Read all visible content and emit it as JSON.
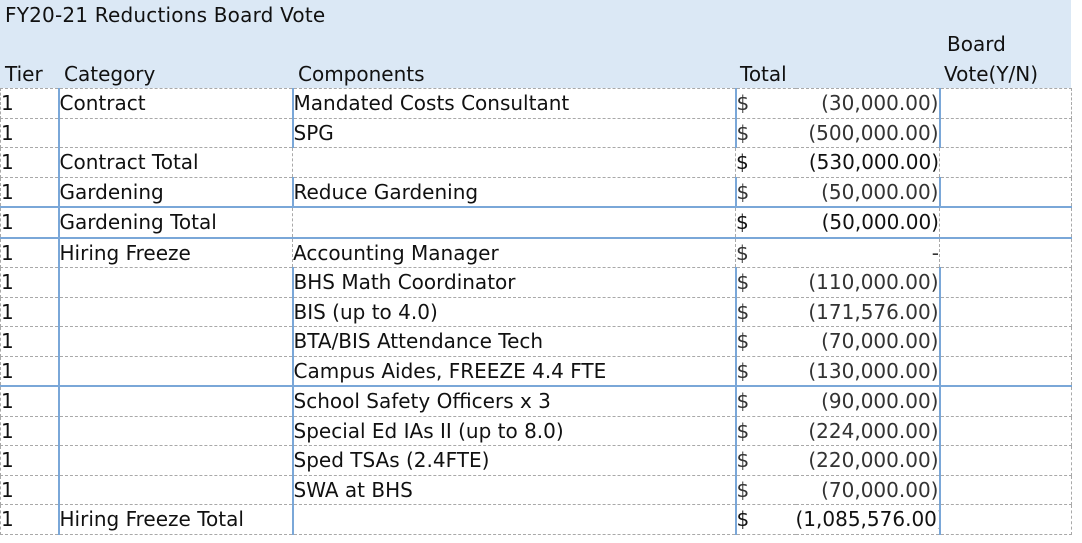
{
  "sheet": {
    "title": "FY20-21 Reductions Board Vote",
    "headers": {
      "tier": "Tier",
      "category": "Category",
      "components": "Components",
      "total": "Total",
      "vote_line1": "Board",
      "vote_line2": "Vote(Y/N)"
    },
    "rows": [
      {
        "tier": "1",
        "category": "Contract",
        "component": "Mandated Costs Consultant",
        "dollar": "$",
        "amount": "(30,000.00)",
        "vote": ""
      },
      {
        "tier": "1",
        "category": "",
        "component": "SPG",
        "dollar": "$",
        "amount": "(500,000.00)",
        "vote": ""
      },
      {
        "tier": "1",
        "category": "Contract Total",
        "component": "",
        "dollar": "$",
        "amount": "(530,000.00)",
        "vote": ""
      },
      {
        "tier": "1",
        "category": "Gardening",
        "component": "Reduce Gardening",
        "dollar": "$",
        "amount": "(50,000.00)",
        "vote": ""
      },
      {
        "tier": "1",
        "category": "Gardening Total",
        "component": "",
        "dollar": "$",
        "amount": "(50,000.00)",
        "vote": ""
      },
      {
        "tier": "1",
        "category": "Hiring Freeze",
        "component": "Accounting Manager",
        "dollar": "$",
        "amount": "-",
        "vote": ""
      },
      {
        "tier": "1",
        "category": "",
        "component": "BHS Math Coordinator",
        "dollar": "$",
        "amount": "(110,000.00)",
        "vote": ""
      },
      {
        "tier": "1",
        "category": "",
        "component": "BIS (up to 4.0)",
        "dollar": "$",
        "amount": "(171,576.00)",
        "vote": ""
      },
      {
        "tier": "1",
        "category": "",
        "component": "BTA/BIS Attendance Tech",
        "dollar": "$",
        "amount": "(70,000.00)",
        "vote": ""
      },
      {
        "tier": "1",
        "category": "",
        "component": "Campus Aides, FREEZE 4.4 FTE",
        "dollar": "$",
        "amount": "(130,000.00)",
        "vote": ""
      },
      {
        "tier": "1",
        "category": "",
        "component": "School Safety Officers x 3",
        "dollar": "$",
        "amount": "(90,000.00)",
        "vote": ""
      },
      {
        "tier": "1",
        "category": "",
        "component": "Special Ed IAs II (up to 8.0)",
        "dollar": "$",
        "amount": "(224,000.00)",
        "vote": ""
      },
      {
        "tier": "1",
        "category": "",
        "component": "Sped TSAs (2.4FTE)",
        "dollar": "$",
        "amount": "(220,000.00)",
        "vote": ""
      },
      {
        "tier": "1",
        "category": "",
        "component": "SWA at BHS",
        "dollar": "$",
        "amount": "(70,000.00)",
        "vote": ""
      },
      {
        "tier": "1",
        "category": "Hiring Freeze Total",
        "component": "",
        "dollar": "$",
        "amount": "(1,085,576.00)",
        "vote": ""
      }
    ]
  }
}
